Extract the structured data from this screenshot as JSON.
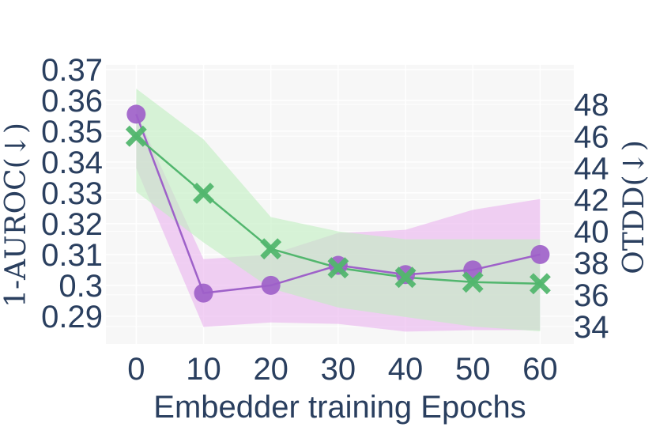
{
  "chart_data": {
    "type": "line",
    "title": "",
    "xlabel": "Embedder training Epochs",
    "y_left_label": "1-AUROC(↓)",
    "y_right_label": "OTDD(↓)",
    "x_ticks": [
      "0",
      "10",
      "20",
      "30",
      "40",
      "50",
      "60"
    ],
    "y_left_ticks": [
      "0.29",
      "0.3",
      "0.31",
      "0.32",
      "0.33",
      "0.34",
      "0.35",
      "0.36",
      "0.37"
    ],
    "y_right_ticks": [
      "34",
      "36",
      "38",
      "40",
      "42",
      "44",
      "46",
      "48"
    ],
    "xlim": [
      -4.5,
      65
    ],
    "y_left_lim": [
      0.281,
      0.3715
    ],
    "y_right_lim": [
      32.9,
      50.5
    ],
    "grid": true,
    "legend": "none",
    "x": [
      0,
      10,
      20,
      30,
      40,
      50,
      60
    ],
    "series": [
      {
        "axis": "left",
        "marker": "circle",
        "color": "#9e61c9",
        "band_color": "#e9b2ef",
        "values": [
          0.3555,
          0.2975,
          0.3,
          0.3065,
          0.3035,
          0.305,
          0.31
        ],
        "lower": [
          0.338,
          0.2865,
          0.288,
          0.2875,
          0.285,
          0.2855,
          0.2855
        ],
        "upper": [
          0.356,
          0.3085,
          0.31,
          0.317,
          0.318,
          0.3245,
          0.328
        ]
      },
      {
        "axis": "right",
        "marker": "x",
        "color": "#52b66e",
        "band_color": "#bfefbf",
        "values": [
          46.0,
          42.4,
          38.9,
          37.7,
          37.1,
          36.8,
          36.7
        ],
        "lower": [
          42.5,
          39.3,
          36.4,
          35.2,
          34.6,
          34.0,
          33.7
        ],
        "upper": [
          49.0,
          45.8,
          40.9,
          40.0,
          39.5,
          39.5,
          39.5
        ]
      }
    ]
  }
}
